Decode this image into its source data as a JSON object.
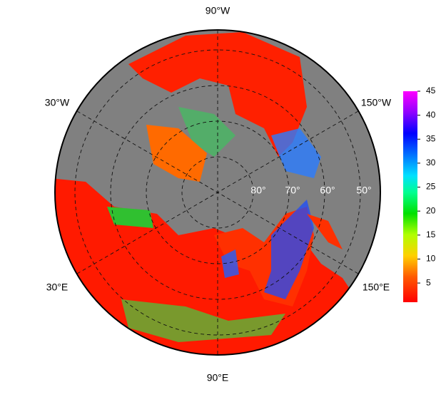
{
  "map": {
    "longitude_labels": [
      "90°W",
      "30°W",
      "150°W",
      "30°E",
      "150°E",
      "90°E"
    ],
    "latitude_labels": [
      "80°",
      "70°",
      "60°",
      "50°"
    ],
    "colorbar": {
      "lim": [
        1,
        45
      ],
      "ticks": [
        5,
        10,
        15,
        20,
        25,
        30,
        35,
        40,
        45
      ]
    }
  }
}
